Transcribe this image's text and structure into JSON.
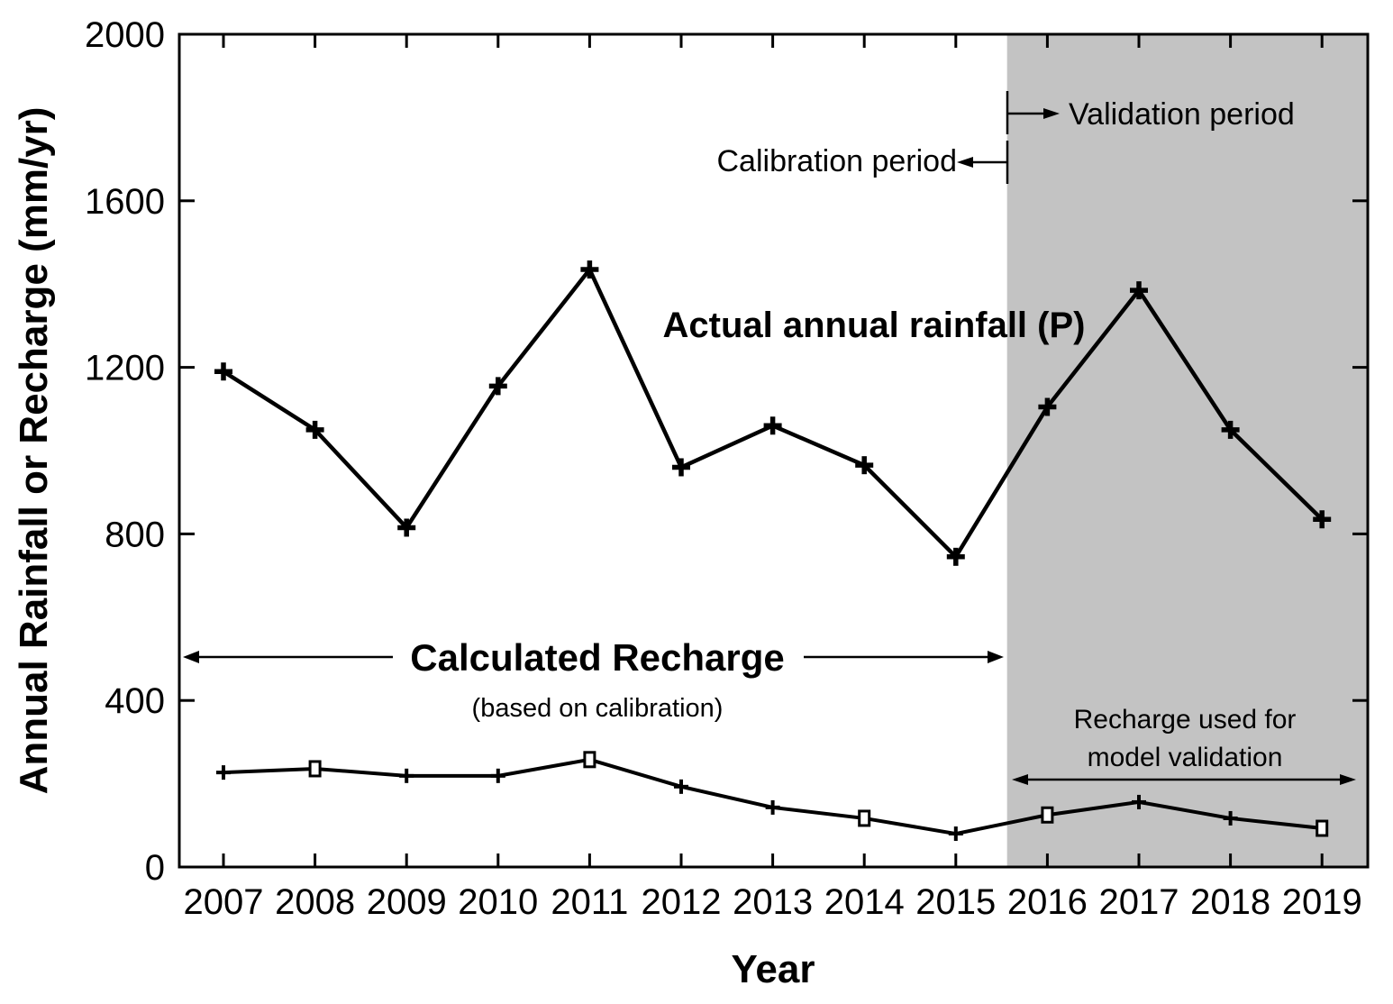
{
  "chart_data": {
    "type": "line",
    "title": "",
    "xlabel": "Year",
    "ylabel": "Annual Rainfall or Recharge (mm/yr)",
    "x": [
      2007,
      2008,
      2009,
      2010,
      2011,
      2012,
      2013,
      2014,
      2015,
      2016,
      2017,
      2018,
      2019
    ],
    "ylim": [
      0,
      2000
    ],
    "yticks": [
      0,
      400,
      800,
      1200,
      1600,
      2000
    ],
    "grid": false,
    "legend_position": "none (series labeled by on-plot annotations)",
    "series": [
      {
        "name": "Actual annual rainfall (P)",
        "marker": "plus",
        "values": [
          1190,
          1050,
          815,
          1155,
          1435,
          960,
          1060,
          965,
          745,
          1105,
          1385,
          1050,
          835
        ]
      },
      {
        "name": "Calculated Recharge (based on calibration)",
        "marker": "plus with open squares",
        "open_square_years": [
          2008,
          2011,
          2014,
          2016,
          2019
        ],
        "values": [
          227,
          236,
          219,
          219,
          258,
          193,
          143,
          117,
          80,
          125,
          156,
          117,
          93
        ]
      }
    ],
    "shaded_region": {
      "from_year": 2015.56,
      "to_year": 2019.5,
      "color": "#c3c3c3",
      "meaning": "Validation period"
    }
  },
  "axis": {
    "y_title": "Annual Rainfall or Recharge (mm/yr)",
    "x_title": "Year"
  },
  "annotations": {
    "rainfall_series_label": "Actual annual rainfall (P)",
    "calibration_period": "Calibration period",
    "validation_period": "Validation period",
    "calculated_recharge_title": "Calculated Recharge",
    "calculated_recharge_sub": "(based on calibration)",
    "recharge_used_line1": "Recharge used for",
    "recharge_used_line2": "model validation"
  },
  "colors": {
    "line": "#000000",
    "shade": "#c3c3c3",
    "background": "#ffffff"
  }
}
